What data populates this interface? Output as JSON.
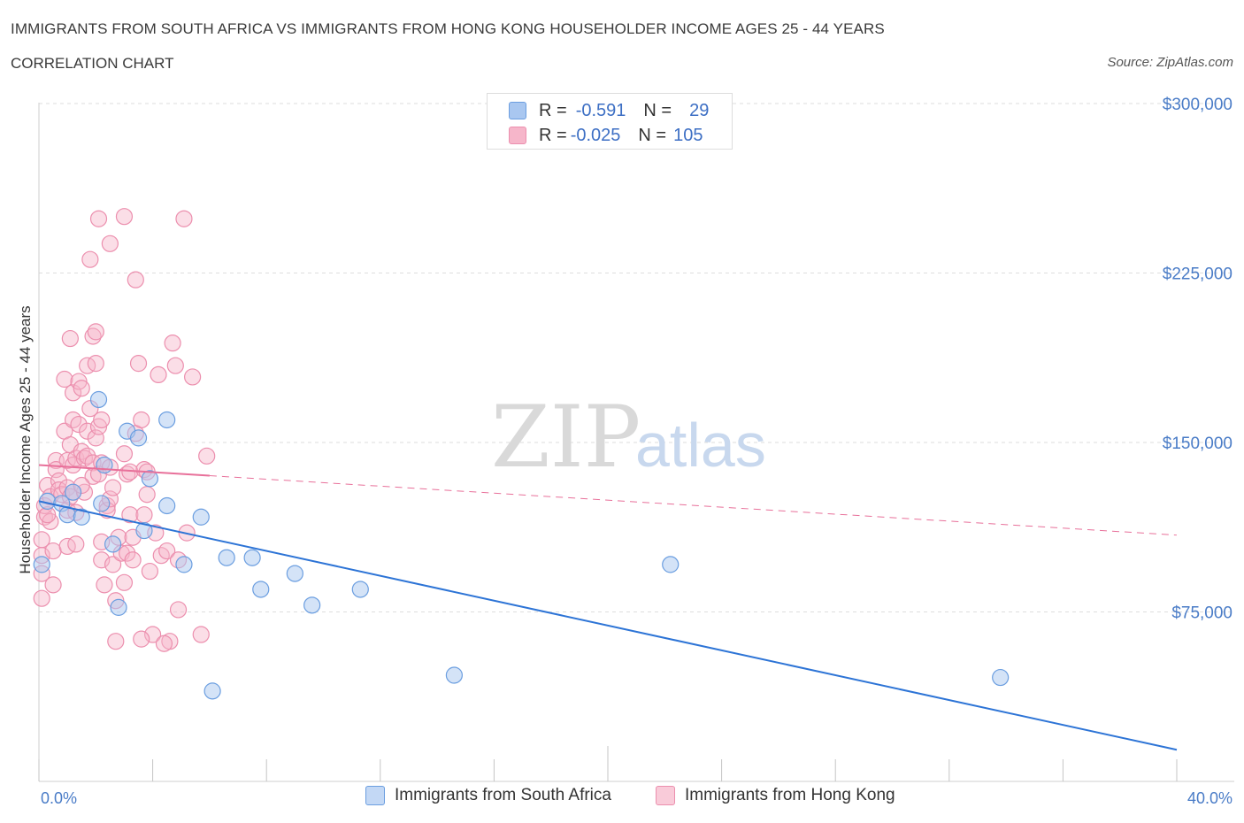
{
  "header": {
    "title": "IMMIGRANTS FROM SOUTH AFRICA VS IMMIGRANTS FROM HONG KONG HOUSEHOLDER INCOME AGES 25 - 44 YEARS",
    "subtitle": "CORRELATION CHART",
    "source": "Source: ZipAtlas.com"
  },
  "watermark": {
    "zip": "ZIP",
    "atlas": "atlas"
  },
  "stats": [
    {
      "r_label": "R =",
      "r_value": "-0.591",
      "n_label": "N =",
      "n_value": "29"
    },
    {
      "r_label": "R =",
      "r_value": "-0.025",
      "n_label": "N =",
      "n_value": "105"
    }
  ],
  "legend": {
    "series1": "Immigrants from South Africa",
    "series2": "Immigrants from Hong Kong"
  },
  "colors": {
    "blue_fill": "#a9c7f0",
    "blue_stroke": "#6b9ee0",
    "blue_line": "#2d74d6",
    "pink_fill": "#f6b6ca",
    "pink_stroke": "#ec8fae",
    "pink_line": "#e8709a",
    "grid": "#dedede",
    "tick_text": "#4a7cc7"
  },
  "chart_data": {
    "type": "scatter",
    "title": "IMMIGRANTS FROM SOUTH AFRICA VS IMMIGRANTS FROM HONG KONG HOUSEHOLDER INCOME AGES 25 - 44 YEARS",
    "xlabel": "",
    "ylabel": "Householder Income Ages 25 - 44 years",
    "xlim": [
      0,
      40
    ],
    "ylim": [
      0,
      300000
    ],
    "x_tick_labels": [
      "0.0%",
      "40.0%"
    ],
    "y_ticks": [
      75000,
      150000,
      225000,
      300000
    ],
    "y_tick_labels": [
      "$75,000",
      "$150,000",
      "$225,000",
      "$300,000"
    ],
    "series": [
      {
        "name": "Immigrants from South Africa",
        "points": [
          [
            0.1,
            96000
          ],
          [
            0.3,
            124000
          ],
          [
            0.8,
            123000
          ],
          [
            1.0,
            118000
          ],
          [
            1.2,
            128000
          ],
          [
            1.5,
            117000
          ],
          [
            2.1,
            169000
          ],
          [
            2.2,
            123000
          ],
          [
            2.3,
            140000
          ],
          [
            2.6,
            105000
          ],
          [
            2.8,
            77000
          ],
          [
            3.1,
            155000
          ],
          [
            3.5,
            152000
          ],
          [
            3.7,
            111000
          ],
          [
            3.9,
            134000
          ],
          [
            4.5,
            160000
          ],
          [
            4.5,
            122000
          ],
          [
            5.1,
            96000
          ],
          [
            5.7,
            117000
          ],
          [
            6.1,
            40000
          ],
          [
            6.6,
            99000
          ],
          [
            7.5,
            99000
          ],
          [
            7.8,
            85000
          ],
          [
            9.0,
            92000
          ],
          [
            9.6,
            78000
          ],
          [
            11.3,
            85000
          ],
          [
            14.6,
            47000
          ],
          [
            22.2,
            96000
          ],
          [
            33.8,
            46000
          ]
        ],
        "trend": {
          "x": [
            0,
            40
          ],
          "y": [
            124000,
            14000
          ]
        }
      },
      {
        "name": "Immigrants from Hong Kong",
        "points": [
          [
            0.1,
            107000
          ],
          [
            0.1,
            100000
          ],
          [
            0.1,
            92000
          ],
          [
            0.1,
            81000
          ],
          [
            0.2,
            117000
          ],
          [
            0.2,
            122000
          ],
          [
            0.3,
            131000
          ],
          [
            0.4,
            126000
          ],
          [
            0.4,
            115000
          ],
          [
            0.5,
            102000
          ],
          [
            0.6,
            142000
          ],
          [
            0.6,
            138000
          ],
          [
            0.7,
            133000
          ],
          [
            0.7,
            129000
          ],
          [
            0.8,
            127000
          ],
          [
            0.9,
            178000
          ],
          [
            0.9,
            155000
          ],
          [
            1.0,
            142000
          ],
          [
            1.0,
            130000
          ],
          [
            1.0,
            120000
          ],
          [
            1.0,
            104000
          ],
          [
            1.1,
            196000
          ],
          [
            1.1,
            149000
          ],
          [
            1.1,
            126000
          ],
          [
            1.2,
            172000
          ],
          [
            1.2,
            160000
          ],
          [
            1.2,
            140000
          ],
          [
            1.2,
            128000
          ],
          [
            1.3,
            143000
          ],
          [
            1.3,
            119000
          ],
          [
            1.4,
            177000
          ],
          [
            1.4,
            158000
          ],
          [
            1.5,
            174000
          ],
          [
            1.5,
            146000
          ],
          [
            1.6,
            143000
          ],
          [
            1.6,
            128000
          ],
          [
            1.7,
            184000
          ],
          [
            1.7,
            155000
          ],
          [
            1.7,
            144000
          ],
          [
            1.8,
            231000
          ],
          [
            1.8,
            165000
          ],
          [
            1.9,
            197000
          ],
          [
            1.9,
            141000
          ],
          [
            1.9,
            135000
          ],
          [
            2.0,
            199000
          ],
          [
            2.0,
            185000
          ],
          [
            2.0,
            152000
          ],
          [
            2.1,
            249000
          ],
          [
            2.1,
            157000
          ],
          [
            2.1,
            136000
          ],
          [
            2.2,
            160000
          ],
          [
            2.2,
            141000
          ],
          [
            2.2,
            106000
          ],
          [
            2.2,
            98000
          ],
          [
            2.3,
            87000
          ],
          [
            2.4,
            122000
          ],
          [
            2.4,
            120000
          ],
          [
            2.5,
            238000
          ],
          [
            2.5,
            139000
          ],
          [
            2.5,
            125000
          ],
          [
            2.6,
            130000
          ],
          [
            2.6,
            96000
          ],
          [
            2.7,
            80000
          ],
          [
            2.8,
            108000
          ],
          [
            2.9,
            101000
          ],
          [
            3.0,
            250000
          ],
          [
            3.0,
            145000
          ],
          [
            3.1,
            136000
          ],
          [
            3.1,
            101000
          ],
          [
            3.2,
            137000
          ],
          [
            3.2,
            118000
          ],
          [
            3.3,
            98000
          ],
          [
            3.4,
            222000
          ],
          [
            3.4,
            154000
          ],
          [
            3.5,
            185000
          ],
          [
            3.6,
            160000
          ],
          [
            3.7,
            138000
          ],
          [
            3.7,
            118000
          ],
          [
            3.8,
            137000
          ],
          [
            3.9,
            93000
          ],
          [
            4.0,
            65000
          ],
          [
            4.1,
            110000
          ],
          [
            4.2,
            180000
          ],
          [
            4.3,
            100000
          ],
          [
            4.5,
            102000
          ],
          [
            4.6,
            62000
          ],
          [
            4.7,
            194000
          ],
          [
            4.8,
            184000
          ],
          [
            4.9,
            76000
          ],
          [
            5.1,
            249000
          ],
          [
            5.4,
            179000
          ],
          [
            5.7,
            65000
          ],
          [
            5.9,
            144000
          ],
          [
            0.3,
            118000
          ],
          [
            0.5,
            87000
          ],
          [
            1.3,
            105000
          ],
          [
            1.5,
            131000
          ],
          [
            2.7,
            62000
          ],
          [
            3.0,
            88000
          ],
          [
            3.3,
            108000
          ],
          [
            3.6,
            63000
          ],
          [
            3.8,
            127000
          ],
          [
            4.4,
            61000
          ],
          [
            4.9,
            98000
          ],
          [
            5.2,
            110000
          ]
        ],
        "trend": {
          "x": [
            0,
            6
          ],
          "y": [
            140000,
            135300
          ]
        },
        "trend_extended": {
          "x": [
            6,
            40
          ],
          "y": [
            135300,
            109000
          ]
        }
      }
    ]
  }
}
